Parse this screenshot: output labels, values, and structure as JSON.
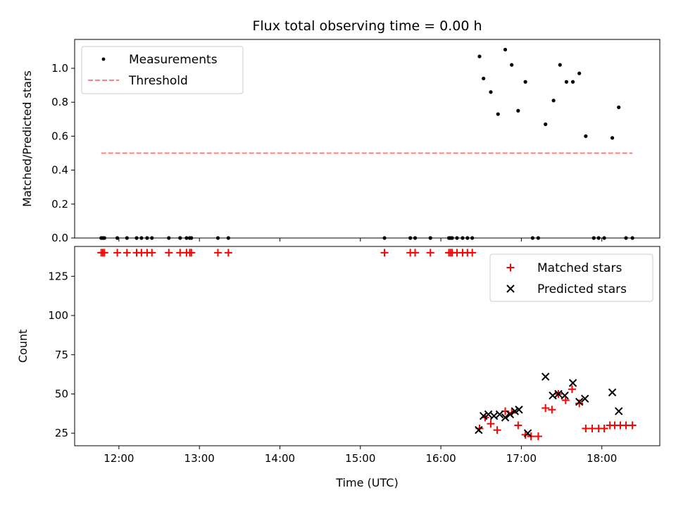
{
  "chart_data": [
    {
      "type": "scatter",
      "title": "Flux total observing time = 0.00 h",
      "xlabel": "",
      "ylabel": "Matched/Predicted stars",
      "xlim": [
        11.45,
        18.72
      ],
      "ylim": [
        0,
        1.17
      ],
      "yticks": [
        0,
        0.2,
        0.4,
        0.6,
        0.8,
        1.0
      ],
      "ytick_labels": [
        "0.0",
        "0.2",
        "0.4",
        "0.6",
        "0.8",
        "1.0"
      ],
      "legend_position": "top-left",
      "series": [
        {
          "name": "Measurements",
          "marker": "dot",
          "color": "#000000",
          "x": [
            11.78,
            11.8,
            11.82,
            11.98,
            12.1,
            12.22,
            12.28,
            12.35,
            12.41,
            12.62,
            12.76,
            12.84,
            12.88,
            12.9,
            13.23,
            13.36,
            15.3,
            15.62,
            15.68,
            15.87,
            16.1,
            16.12,
            16.14,
            16.2,
            16.27,
            16.33,
            16.39,
            16.48,
            16.53,
            16.62,
            16.71,
            16.8,
            16.88,
            16.96,
            17.05,
            17.14,
            17.21,
            17.3,
            17.4,
            17.48,
            17.56,
            17.64,
            17.72,
            17.8,
            17.9,
            17.96,
            18.03,
            18.13,
            18.21,
            18.3,
            18.38
          ],
          "y": [
            0,
            0,
            0,
            0,
            0,
            0,
            0,
            0,
            0,
            0,
            0,
            0,
            0,
            0,
            0,
            0,
            0,
            0,
            0,
            0,
            0,
            0,
            0,
            0,
            0,
            0,
            0,
            1.07,
            0.94,
            0.86,
            0.73,
            1.11,
            1.02,
            0.75,
            0.92,
            0,
            0,
            0.67,
            0.81,
            1.02,
            0.92,
            0.92,
            0.97,
            0.6,
            0,
            0,
            0,
            0.59,
            0.77,
            0,
            0
          ]
        },
        {
          "name": "Threshold",
          "marker": "dashed-line",
          "color": "#ff7f7f",
          "x": [
            11.78,
            18.38
          ],
          "y": [
            0.5,
            0.5
          ]
        }
      ]
    },
    {
      "type": "scatter",
      "title": "",
      "xlabel": "Time (UTC)",
      "ylabel": "Count",
      "xlim": [
        11.45,
        18.72
      ],
      "ylim": [
        17,
        144
      ],
      "xticks": [
        12,
        13,
        14,
        15,
        16,
        17,
        18
      ],
      "xtick_labels": [
        "12:00",
        "13:00",
        "14:00",
        "15:00",
        "16:00",
        "17:00",
        "18:00"
      ],
      "yticks": [
        25,
        50,
        75,
        100,
        125
      ],
      "ytick_labels": [
        "25",
        "50",
        "75",
        "100",
        "125"
      ],
      "legend_position": "top-right",
      "series": [
        {
          "name": "Matched stars",
          "marker": "plus",
          "color": "#ff0000",
          "x": [
            11.78,
            11.8,
            11.82,
            11.98,
            12.1,
            12.22,
            12.28,
            12.35,
            12.41,
            12.62,
            12.76,
            12.84,
            12.88,
            12.9,
            13.23,
            13.36,
            15.3,
            15.62,
            15.68,
            15.87,
            16.1,
            16.12,
            16.14,
            16.2,
            16.27,
            16.33,
            16.39,
            16.48,
            16.55,
            16.62,
            16.7,
            16.8,
            16.88,
            16.96,
            17.05,
            17.12,
            17.21,
            17.3,
            17.38,
            17.46,
            17.55,
            17.63,
            17.72,
            17.8,
            17.88,
            17.96,
            18.03,
            18.1,
            18.16,
            18.23,
            18.3,
            18.38
          ],
          "y": [
            140,
            140,
            140,
            140,
            140,
            140,
            140,
            140,
            140,
            140,
            140,
            140,
            140,
            140,
            140,
            140,
            140,
            140,
            140,
            140,
            140,
            140,
            140,
            140,
            140,
            140,
            140,
            28,
            35,
            31,
            27,
            39,
            38,
            30,
            24,
            23,
            23,
            41,
            40,
            50,
            46,
            53,
            44,
            28,
            28,
            28,
            28,
            30,
            30,
            30,
            30,
            30
          ]
        },
        {
          "name": "Predicted stars",
          "marker": "x",
          "color": "#000000",
          "x": [
            16.47,
            16.53,
            16.59,
            16.66,
            16.73,
            16.8,
            16.86,
            16.92,
            16.97,
            17.08,
            17.3,
            17.39,
            17.46,
            17.54,
            17.64,
            17.72,
            17.79,
            18.13,
            18.21
          ],
          "y": [
            27,
            36,
            37,
            36,
            37,
            35,
            37,
            39,
            40,
            25,
            61,
            49,
            50,
            49,
            57,
            45,
            47,
            51,
            39
          ]
        }
      ]
    }
  ]
}
